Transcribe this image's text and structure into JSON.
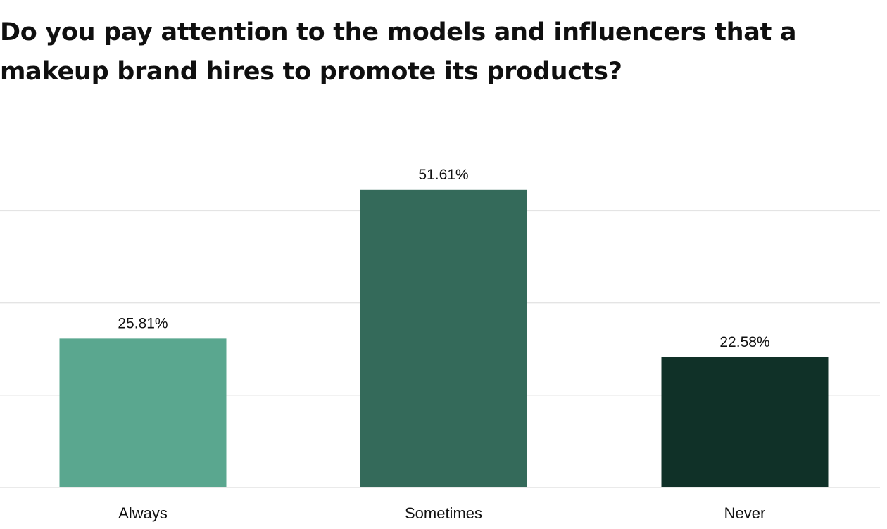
{
  "chart_data": {
    "type": "bar",
    "title": "Do you pay attention to the models and influencers that a makeup brand hires to promote its products?",
    "categories": [
      "Always",
      "Sometimes",
      "Never"
    ],
    "values": [
      25.81,
      51.61,
      22.58
    ],
    "data_labels": [
      "25.81%",
      "51.61%",
      "22.58%"
    ],
    "colors": [
      "#5aa78f",
      "#346a5a",
      "#103128"
    ],
    "gridline_color": "#e4e4e4",
    "ylim": [
      0,
      60
    ],
    "gridlines": [
      0,
      16,
      32,
      48
    ],
    "grid": true,
    "legend": "none"
  }
}
